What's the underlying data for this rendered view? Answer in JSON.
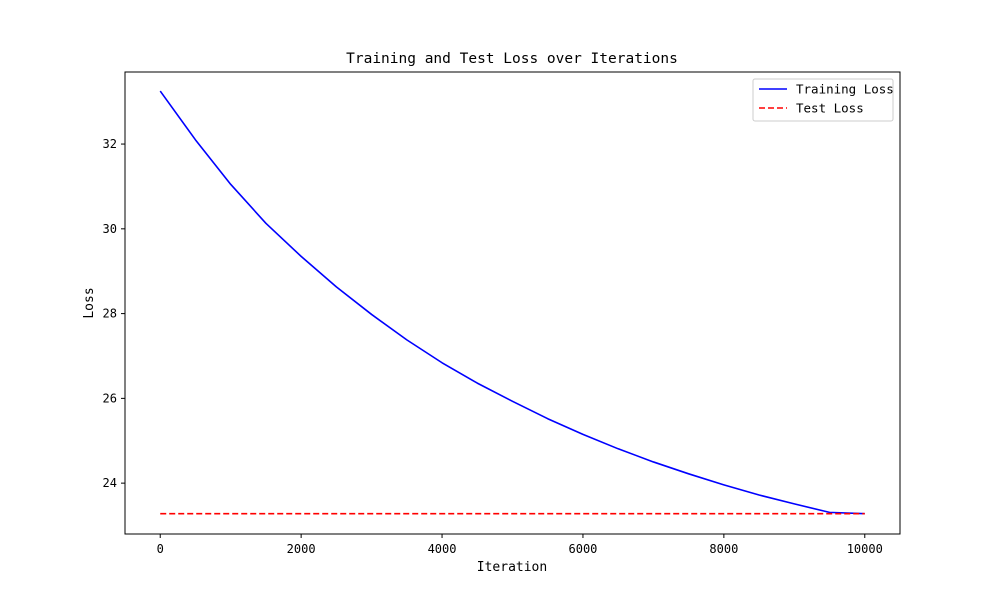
{
  "chart_data": {
    "type": "line",
    "title": "Training and Test Loss over Iterations",
    "xlabel": "Iteration",
    "ylabel": "Loss",
    "xlim": [
      -500,
      10500
    ],
    "ylim": [
      22.8,
      33.7
    ],
    "xticks": [
      0,
      2000,
      4000,
      6000,
      8000,
      10000
    ],
    "yticks": [
      24,
      26,
      28,
      30,
      32
    ],
    "grid": false,
    "legend_position": "top-right",
    "series": [
      {
        "name": "Training Loss",
        "color": "#0000ff",
        "style": "solid",
        "x": [
          0,
          500,
          1000,
          1500,
          2000,
          2500,
          3000,
          3500,
          4000,
          4500,
          5000,
          5500,
          6000,
          6500,
          7000,
          7500,
          8000,
          8500,
          9000,
          9500,
          10000
        ],
        "y": [
          33.25,
          32.1,
          31.05,
          30.13,
          29.35,
          28.63,
          27.98,
          27.38,
          26.84,
          26.36,
          25.93,
          25.52,
          25.15,
          24.81,
          24.5,
          24.22,
          23.96,
          23.72,
          23.51,
          23.31,
          23.28
        ]
      },
      {
        "name": "Test Loss",
        "color": "#ff0000",
        "style": "dashed",
        "x": [
          0,
          10000
        ],
        "y": [
          23.28,
          23.28
        ]
      }
    ]
  }
}
